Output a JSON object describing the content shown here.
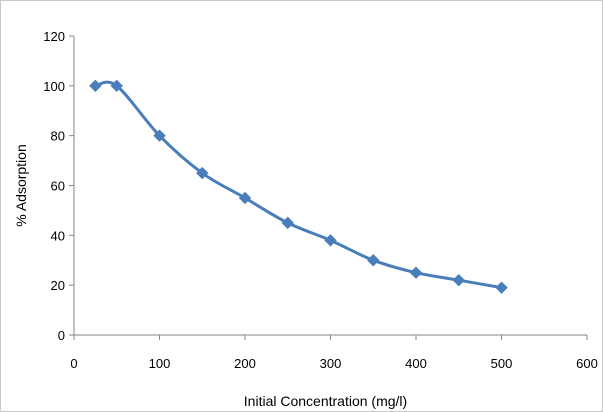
{
  "chart_data": {
    "type": "line",
    "title": "",
    "xlabel": "Initial Concentration (mg/l)",
    "ylabel": "% Adsorption",
    "xlim": [
      0,
      600
    ],
    "ylim": [
      0,
      120
    ],
    "x_ticks": [
      0,
      100,
      200,
      300,
      400,
      500,
      600
    ],
    "y_ticks": [
      0,
      20,
      40,
      60,
      80,
      100,
      120
    ],
    "grid": false,
    "legend": "none",
    "marker": "diamond",
    "smooth": true,
    "series": [
      {
        "color": "#4a7ebb",
        "x": [
          25,
          50,
          100,
          150,
          200,
          250,
          300,
          350,
          400,
          450,
          500
        ],
        "y": [
          100,
          100,
          80,
          65,
          55,
          45,
          38,
          30,
          25,
          22,
          19
        ]
      }
    ]
  }
}
